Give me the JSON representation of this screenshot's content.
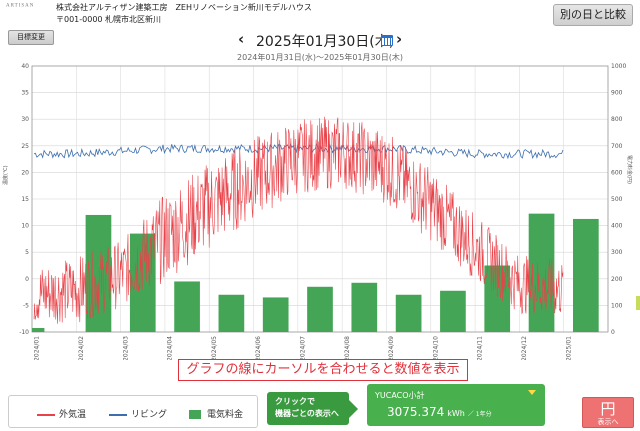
{
  "header": {
    "logo_text": "ARTISAN",
    "company_line1": "株式会社アルティザン建築工房　ZEHリノベーション新川モデルハウス",
    "company_line2": "〒001-0000 札幌市北区新川",
    "compare_button": "別の日と比較",
    "target_button": "目標変更"
  },
  "date_nav": {
    "prev": "‹",
    "title": "2025年01月30日(木)",
    "next": "›",
    "range": "2024年01月31日(水)〜2025年01月30日(木)",
    "calendar_icon": "calendar-icon"
  },
  "chart_data": {
    "type": "line",
    "ylabel": "温度(℃)",
    "ylabel_right": "電力料金(円)",
    "ylim": [
      -10,
      40
    ],
    "ylim_right": [
      0,
      1000
    ],
    "yticks": [
      "40",
      "35",
      "30",
      "25",
      "20",
      "15",
      "10",
      "5",
      "0",
      "-5",
      "-10"
    ],
    "yticks_right": [
      "1000",
      "900",
      "800",
      "700",
      "600",
      "500",
      "400",
      "300",
      "200",
      "100",
      "0"
    ],
    "categories": [
      "2024/01",
      "2024/02",
      "2024/03",
      "2024/04",
      "2024/05",
      "2024/06",
      "2024/07",
      "2024/08",
      "2024/09",
      "2024/10",
      "2024/11",
      "2024/12",
      "2025/01"
    ],
    "grid": true,
    "legend": "bottom-left",
    "series": [
      {
        "name": "外気温",
        "color": "#e8434a",
        "axis": "left",
        "monthly_mid": [
          -3,
          -2,
          1,
          8,
          14,
          19,
          23,
          24,
          21,
          14,
          6,
          -1,
          -2
        ],
        "daily_range": [
          8,
          9,
          9,
          12,
          12,
          11,
          10,
          10,
          10,
          10,
          9,
          8,
          8
        ]
      },
      {
        "name": "リビング",
        "color": "#3d6fae",
        "axis": "left",
        "monthly_mid": [
          23.5,
          23.5,
          24,
          24.5,
          24.5,
          24.5,
          24.5,
          24.5,
          24.5,
          24,
          23.5,
          23.5,
          23.5
        ]
      },
      {
        "name": "電気料金",
        "color": "#45a556",
        "axis": "right",
        "values": [
          15,
          440,
          370,
          190,
          140,
          130,
          170,
          185,
          140,
          155,
          250,
          445,
          425
        ]
      }
    ]
  },
  "hint_text": "グラフの線にカーソルを合わせると数値を表示",
  "legend": [
    {
      "label": "外気温",
      "color": "#e8434a"
    },
    {
      "label": "リビング",
      "color": "#3d6fae"
    },
    {
      "label": "電気料金",
      "color": "#45a556"
    }
  ],
  "click_button": {
    "line1": "クリックで",
    "line2": "機器ごとの表示へ"
  },
  "total": {
    "label": "YUCACO小計",
    "value": "3075.374",
    "unit": "kWh",
    "period": "／ 1年分"
  },
  "yen_button": {
    "symbol": "円",
    "label": "表示へ"
  }
}
